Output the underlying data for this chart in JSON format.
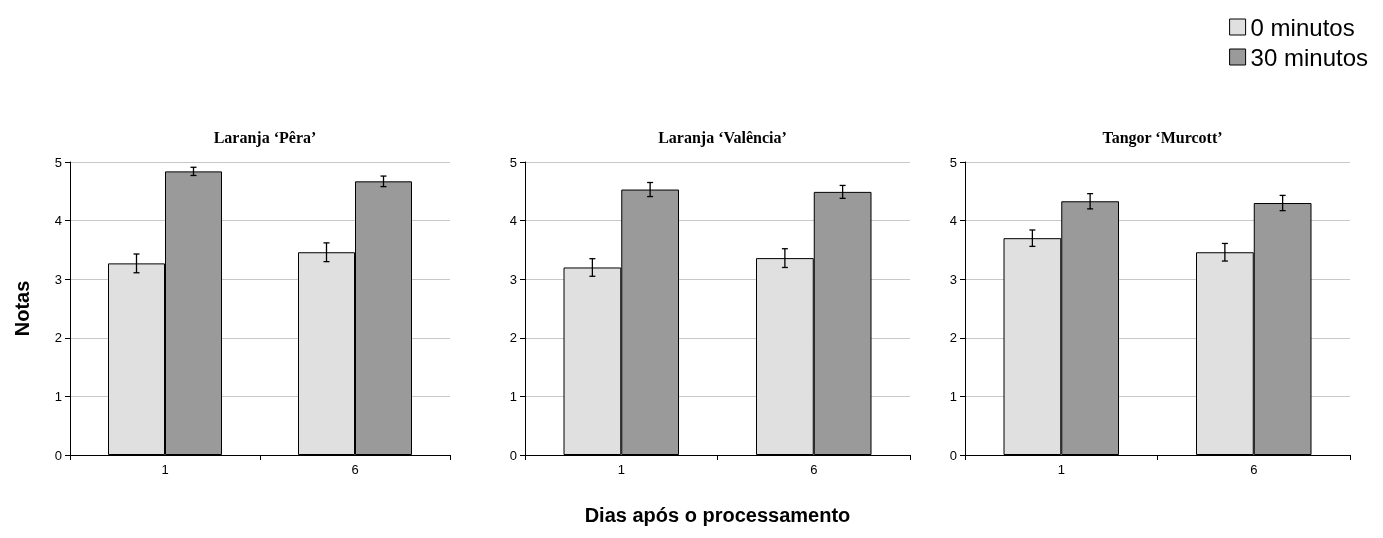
{
  "chart_data": [
    {
      "type": "bar",
      "title": "Laranja ‘Pêra’",
      "ylabel": "Notas",
      "categories": [
        "1",
        "6"
      ],
      "ylim": [
        0,
        5
      ],
      "yticks": [
        0,
        1,
        2,
        3,
        4,
        5
      ],
      "grid": "y",
      "legend": false,
      "series": [
        {
          "color": "#e0e0e0",
          "values": [
            3.27,
            3.46
          ],
          "errors": [
            0.16,
            0.16
          ]
        },
        {
          "color": "#9a9a9a",
          "values": [
            4.84,
            4.67
          ],
          "errors": [
            0.07,
            0.09
          ]
        }
      ]
    },
    {
      "type": "bar",
      "title": "Laranja ‘Valência’",
      "xlabel": "Dias após o processamento",
      "categories": [
        "1",
        "6"
      ],
      "ylim": [
        0,
        5
      ],
      "yticks": [
        0,
        1,
        2,
        3,
        4,
        5
      ],
      "grid": "y",
      "legend": false,
      "series": [
        {
          "color": "#e0e0e0",
          "values": [
            3.2,
            3.36
          ],
          "errors": [
            0.15,
            0.16
          ]
        },
        {
          "color": "#9a9a9a",
          "values": [
            4.53,
            4.49
          ],
          "errors": [
            0.12,
            0.11
          ]
        }
      ]
    },
    {
      "type": "bar",
      "title": "Tangor ‘Murcott’",
      "categories": [
        "1",
        "6"
      ],
      "ylim": [
        0,
        5
      ],
      "yticks": [
        0,
        1,
        2,
        3,
        4,
        5
      ],
      "grid": "y",
      "legend": "top right",
      "series": [
        {
          "name": "0 minutos",
          "color": "#e0e0e0",
          "values": [
            3.7,
            3.46
          ],
          "errors": [
            0.14,
            0.15
          ]
        },
        {
          "name": "30 minutos",
          "color": "#9a9a9a",
          "values": [
            4.33,
            4.3
          ],
          "errors": [
            0.13,
            0.13
          ]
        }
      ]
    }
  ]
}
